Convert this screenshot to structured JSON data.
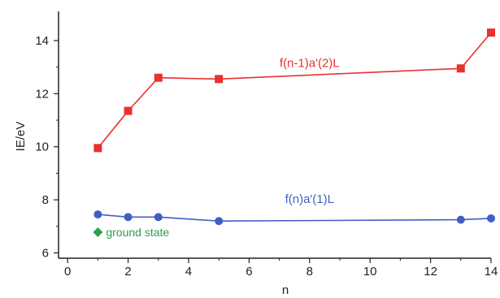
{
  "chart_data": {
    "type": "line",
    "xlabel": "n",
    "ylabel": "IE/eV",
    "xlim": [
      -0.3,
      14
    ],
    "ylim": [
      5.8,
      15.1
    ],
    "xticks": [
      0,
      2,
      4,
      6,
      8,
      10,
      12,
      14
    ],
    "yticks": [
      6,
      8,
      10,
      12,
      14
    ],
    "tick_labels_x": [
      "0",
      "2",
      "4",
      "6",
      "8",
      "10",
      "12",
      "14"
    ],
    "tick_labels_y": [
      "6",
      "8",
      "10",
      "12",
      "14"
    ],
    "grid": false,
    "legend": "none",
    "series": [
      {
        "name": "f(n-1)a'(2)L",
        "marker": "square",
        "color": "#e8322f",
        "x": [
          1,
          2,
          3,
          5,
          13,
          14
        ],
        "y": [
          9.95,
          11.35,
          12.6,
          12.55,
          12.95,
          14.3
        ]
      },
      {
        "name": "f(n)a'(1)L",
        "marker": "circle",
        "color": "#3f5fc6",
        "x": [
          1,
          2,
          3,
          5,
          13,
          14
        ],
        "y": [
          7.45,
          7.35,
          7.35,
          7.2,
          7.25,
          7.3
        ]
      }
    ],
    "annotations": [
      {
        "text": "ground state",
        "marker": "diamond",
        "color": "#2a9f4b",
        "x": 1,
        "y": 6.78
      }
    ]
  }
}
